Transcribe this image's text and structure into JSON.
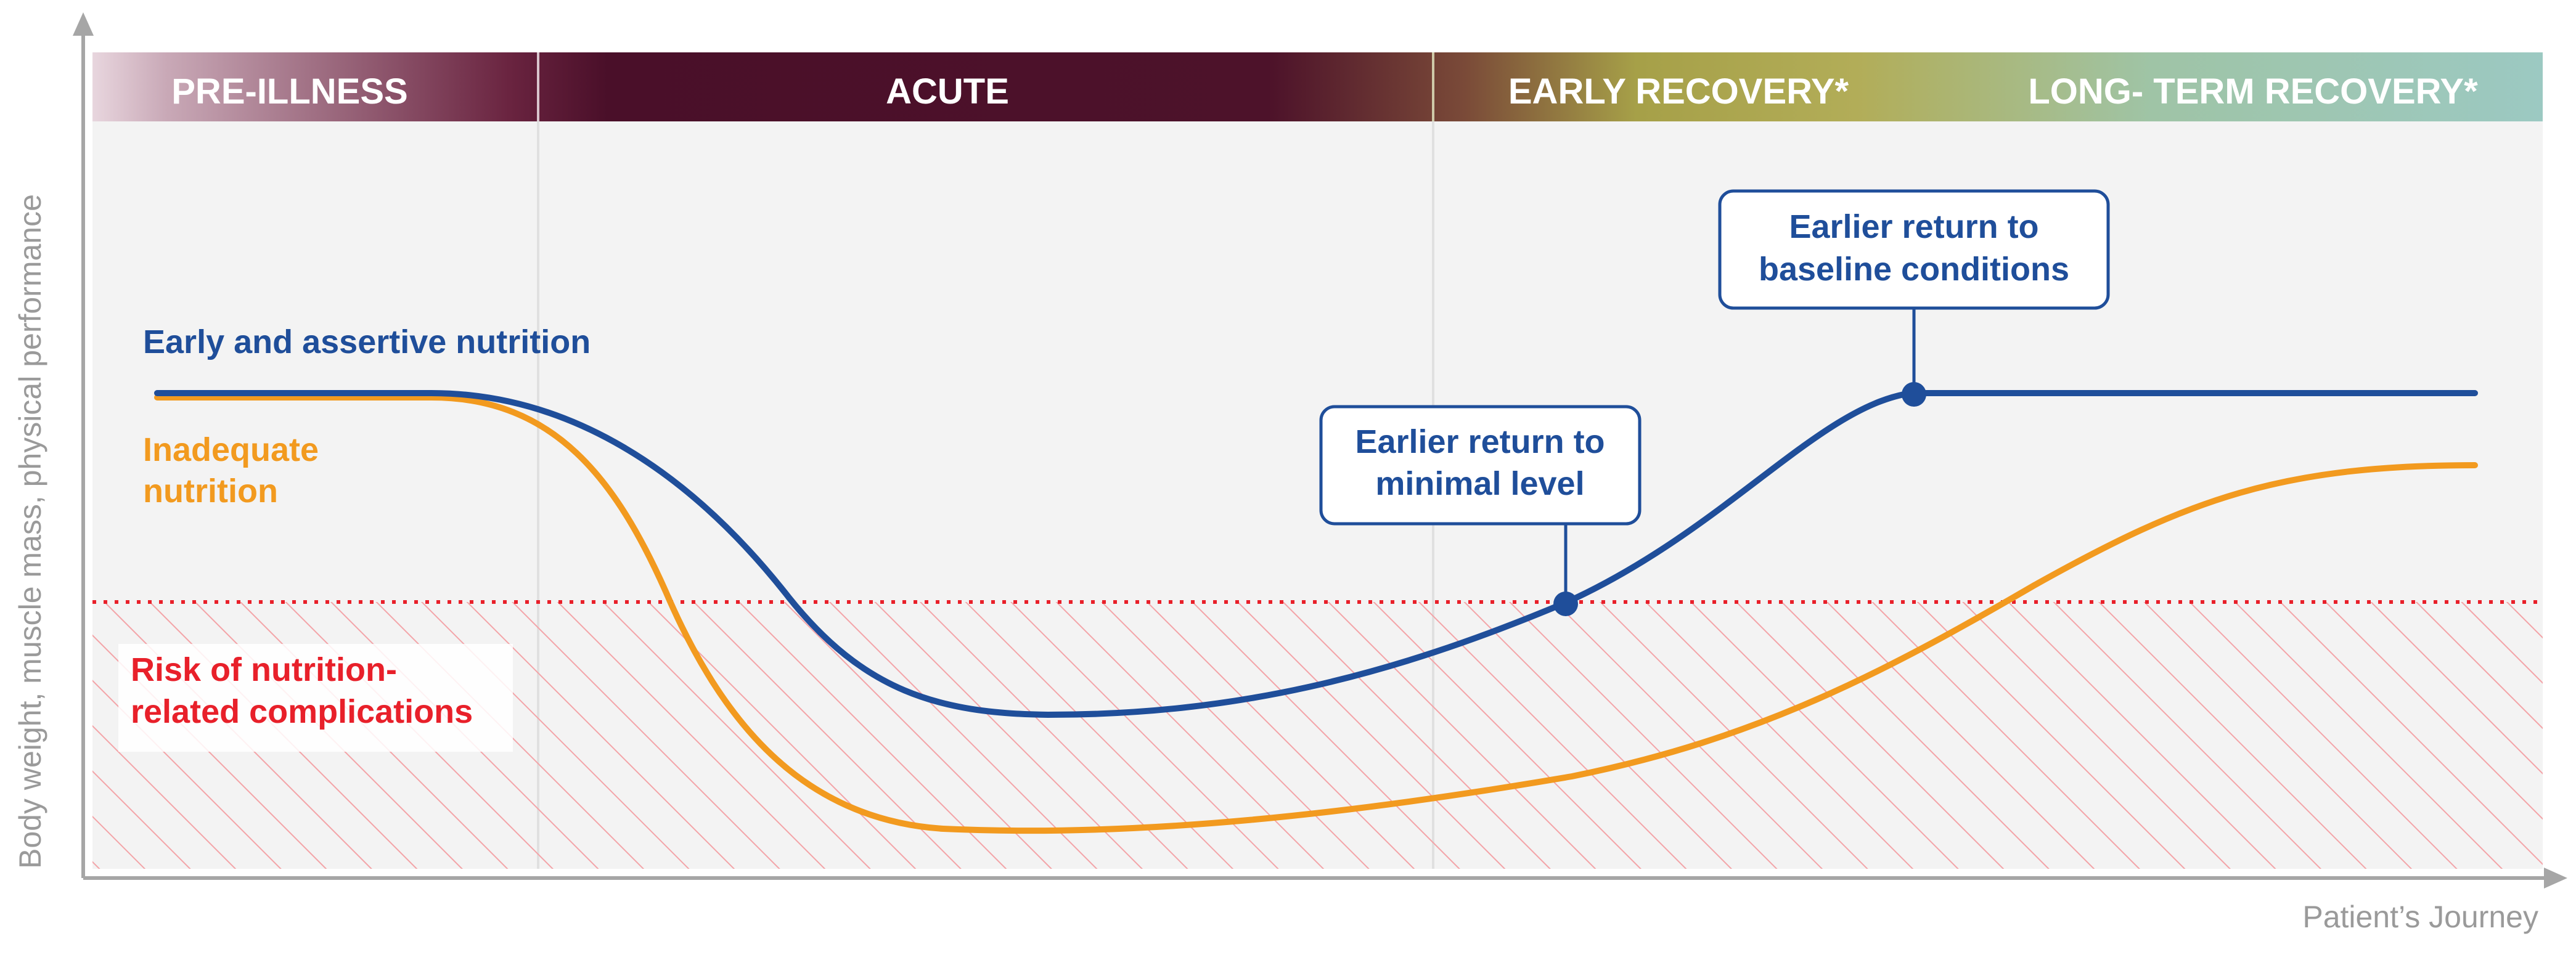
{
  "phases": [
    {
      "label": "PRE-ILLNESS"
    },
    {
      "label": "ACUTE"
    },
    {
      "label": "EARLY RECOVERY*"
    },
    {
      "label": "LONG- TERM RECOVERY*"
    }
  ],
  "lines": {
    "early": {
      "label": "Early and assertive nutrition",
      "color": "#1f4e9a"
    },
    "inadequate": {
      "label_line1": "Inadequate",
      "label_line2": "nutrition",
      "color": "#f29a1f"
    }
  },
  "risk": {
    "label_line1": "Risk of nutrition-",
    "label_line2": "related complications",
    "color": "#e8202a"
  },
  "callouts": {
    "minimal": {
      "line1": "Earlier return to",
      "line2": "minimal level"
    },
    "baseline": {
      "line1": "Earlier return to",
      "line2": "baseline conditions"
    }
  },
  "axes": {
    "y_label": "Body weight, muscle mass, physical performance",
    "x_label": "Patient’s Journey"
  }
}
